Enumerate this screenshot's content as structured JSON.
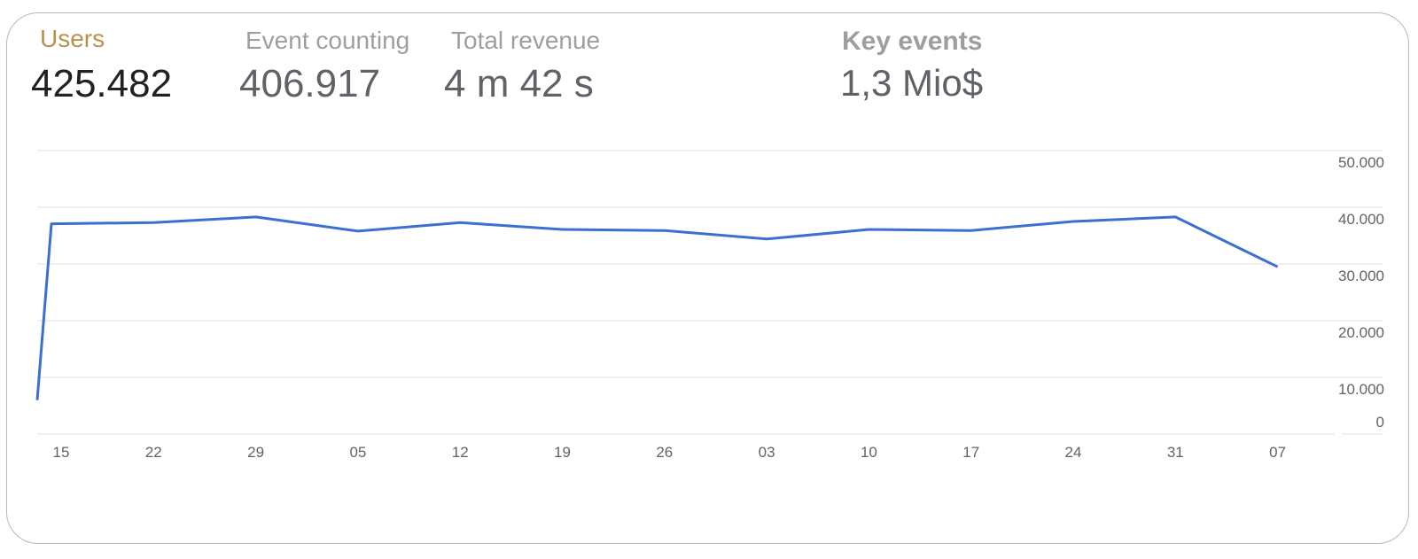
{
  "metrics": [
    {
      "id": "users",
      "label": "Users",
      "value": "425.482"
    },
    {
      "id": "events",
      "label": "Event counting",
      "value": "406.917"
    },
    {
      "id": "revenue",
      "label": "Total revenue",
      "value": "4 m 42 s"
    },
    {
      "id": "key",
      "label": "Key events",
      "value": "1,3 Mio$"
    }
  ],
  "colors": {
    "line": "#3b6fd1",
    "grid": "#e0e0e0",
    "active_label": "#b9924a"
  },
  "chart_data": {
    "type": "line",
    "x": [
      "",
      "15",
      "22",
      "29",
      "05",
      "12",
      "19",
      "26",
      "03",
      "10",
      "17",
      "24",
      "31",
      "07"
    ],
    "x_ticks": [
      "15",
      "22",
      "29",
      "05",
      "12",
      "19",
      "26",
      "03",
      "10",
      "17",
      "24",
      "31",
      "07"
    ],
    "y_ticks": [
      "0",
      "10.000",
      "20.000",
      "30.000",
      "40.000",
      "50.000"
    ],
    "series": [
      {
        "values": [
          6000,
          37100,
          37300,
          38300,
          35800,
          37300,
          36100,
          35900,
          34400,
          36100,
          35900,
          37500,
          38300,
          29500
        ]
      }
    ],
    "ylim": [
      0,
      50000
    ],
    "grid": true
  }
}
